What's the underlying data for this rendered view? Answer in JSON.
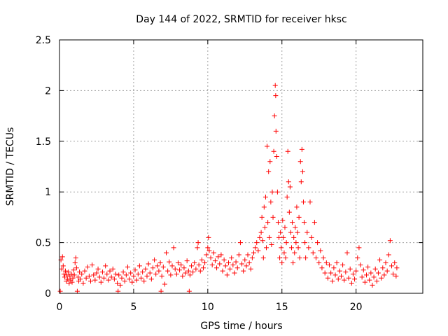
{
  "chart_data": {
    "type": "scatter",
    "title": "Day 144 of 2022, SRMTID for receiver hksc",
    "xlabel": "GPS time / hours",
    "ylabel": "SRMTID / TECUs",
    "xlim": [
      0,
      24.5
    ],
    "ylim": [
      0,
      2.5
    ],
    "x_ticks": [
      0,
      5,
      10,
      15,
      20
    ],
    "x_tick_labels": [
      "0",
      "5",
      "10",
      "15",
      "20"
    ],
    "y_ticks": [
      0,
      0.5,
      1,
      1.5,
      2,
      2.5
    ],
    "y_tick_labels": [
      "0",
      "0.5",
      "1",
      "1.5",
      "2",
      "2.5"
    ],
    "grid": true,
    "marker": "+",
    "color": "#ff0000",
    "series": [
      {
        "name": "SRMTID",
        "points": [
          [
            0.05,
            0.02
          ],
          [
            0.1,
            0.33
          ],
          [
            0.15,
            0.24
          ],
          [
            0.2,
            0.36
          ],
          [
            0.25,
            0.27
          ],
          [
            0.3,
            0.19
          ],
          [
            0.35,
            0.16
          ],
          [
            0.4,
            0.22
          ],
          [
            0.45,
            0.12
          ],
          [
            0.5,
            0.18
          ],
          [
            0.55,
            0.14
          ],
          [
            0.6,
            0.21
          ],
          [
            0.65,
            0.1
          ],
          [
            0.7,
            0.17
          ],
          [
            0.75,
            0.13
          ],
          [
            0.8,
            0.19
          ],
          [
            0.85,
            0.11
          ],
          [
            0.9,
            0.15
          ],
          [
            0.95,
            0.23
          ],
          [
            1.0,
            0.18
          ],
          [
            1.05,
            0.3
          ],
          [
            1.1,
            0.35
          ],
          [
            1.15,
            0.25
          ],
          [
            1.2,
            0.02
          ],
          [
            1.25,
            0.16
          ],
          [
            1.3,
            0.12
          ],
          [
            1.35,
            0.21
          ],
          [
            1.4,
            0.14
          ],
          [
            1.5,
            0.19
          ],
          [
            1.6,
            0.1
          ],
          [
            1.7,
            0.22
          ],
          [
            1.8,
            0.15
          ],
          [
            1.9,
            0.26
          ],
          [
            2.0,
            0.17
          ],
          [
            2.1,
            0.12
          ],
          [
            2.2,
            0.28
          ],
          [
            2.3,
            0.18
          ],
          [
            2.4,
            0.13
          ],
          [
            2.5,
            0.2
          ],
          [
            2.6,
            0.24
          ],
          [
            2.7,
            0.16
          ],
          [
            2.8,
            0.11
          ],
          [
            2.9,
            0.21
          ],
          [
            3.0,
            0.15
          ],
          [
            3.1,
            0.27
          ],
          [
            3.2,
            0.19
          ],
          [
            3.3,
            0.13
          ],
          [
            3.4,
            0.22
          ],
          [
            3.5,
            0.16
          ],
          [
            3.6,
            0.24
          ],
          [
            3.7,
            0.14
          ],
          [
            3.8,
            0.19
          ],
          [
            3.9,
            0.1
          ],
          [
            3.95,
            0.02
          ],
          [
            4.0,
            0.18
          ],
          [
            4.1,
            0.08
          ],
          [
            4.2,
            0.15
          ],
          [
            4.3,
            0.21
          ],
          [
            4.4,
            0.12
          ],
          [
            4.5,
            0.18
          ],
          [
            4.6,
            0.26
          ],
          [
            4.7,
            0.14
          ],
          [
            4.8,
            0.2
          ],
          [
            4.9,
            0.11
          ],
          [
            5.0,
            0.17
          ],
          [
            5.1,
            0.23
          ],
          [
            5.2,
            0.13
          ],
          [
            5.3,
            0.19
          ],
          [
            5.4,
            0.27
          ],
          [
            5.5,
            0.15
          ],
          [
            5.6,
            0.21
          ],
          [
            5.7,
            0.12
          ],
          [
            5.8,
            0.24
          ],
          [
            5.9,
            0.17
          ],
          [
            6.0,
            0.29
          ],
          [
            6.1,
            0.2
          ],
          [
            6.2,
            0.14
          ],
          [
            6.3,
            0.25
          ],
          [
            6.4,
            0.33
          ],
          [
            6.5,
            0.19
          ],
          [
            6.6,
            0.27
          ],
          [
            6.7,
            0.22
          ],
          [
            6.8,
            0.3
          ],
          [
            6.85,
            0.02
          ],
          [
            6.9,
            0.17
          ],
          [
            7.0,
            0.26
          ],
          [
            7.1,
            0.09
          ],
          [
            7.2,
            0.4
          ],
          [
            7.3,
            0.22
          ],
          [
            7.4,
            0.31
          ],
          [
            7.5,
            0.18
          ],
          [
            7.6,
            0.27
          ],
          [
            7.7,
            0.45
          ],
          [
            7.8,
            0.24
          ],
          [
            7.9,
            0.19
          ],
          [
            8.0,
            0.3
          ],
          [
            8.1,
            0.23
          ],
          [
            8.2,
            0.28
          ],
          [
            8.3,
            0.17
          ],
          [
            8.4,
            0.25
          ],
          [
            8.5,
            0.2
          ],
          [
            8.6,
            0.32
          ],
          [
            8.7,
            0.22
          ],
          [
            8.75,
            0.02
          ],
          [
            8.8,
            0.18
          ],
          [
            8.9,
            0.27
          ],
          [
            9.0,
            0.21
          ],
          [
            9.1,
            0.3
          ],
          [
            9.2,
            0.24
          ],
          [
            9.3,
            0.45
          ],
          [
            9.35,
            0.5
          ],
          [
            9.4,
            0.28
          ],
          [
            9.5,
            0.22
          ],
          [
            9.6,
            0.33
          ],
          [
            9.7,
            0.25
          ],
          [
            9.8,
            0.3
          ],
          [
            9.9,
            0.38
          ],
          [
            10.0,
            0.45
          ],
          [
            10.05,
            0.55
          ],
          [
            10.1,
            0.42
          ],
          [
            10.2,
            0.35
          ],
          [
            10.3,
            0.28
          ],
          [
            10.4,
            0.4
          ],
          [
            10.5,
            0.32
          ],
          [
            10.6,
            0.25
          ],
          [
            10.7,
            0.36
          ],
          [
            10.8,
            0.29
          ],
          [
            10.9,
            0.38
          ],
          [
            11.0,
            0.22
          ],
          [
            11.1,
            0.33
          ],
          [
            11.2,
            0.27
          ],
          [
            11.3,
            0.18
          ],
          [
            11.4,
            0.3
          ],
          [
            11.5,
            0.24
          ],
          [
            11.6,
            0.35
          ],
          [
            11.7,
            0.28
          ],
          [
            11.8,
            0.2
          ],
          [
            11.9,
            0.31
          ],
          [
            12.0,
            0.25
          ],
          [
            12.1,
            0.38
          ],
          [
            12.2,
            0.5
          ],
          [
            12.3,
            0.29
          ],
          [
            12.4,
            0.22
          ],
          [
            12.5,
            0.33
          ],
          [
            12.6,
            0.27
          ],
          [
            12.7,
            0.38
          ],
          [
            12.8,
            0.3
          ],
          [
            12.9,
            0.24
          ],
          [
            13.0,
            0.35
          ],
          [
            13.1,
            0.4
          ],
          [
            13.2,
            0.45
          ],
          [
            13.3,
            0.5
          ],
          [
            13.4,
            0.42
          ],
          [
            13.5,
            0.55
          ],
          [
            13.6,
            0.6
          ],
          [
            13.65,
            0.75
          ],
          [
            13.7,
            0.52
          ],
          [
            13.75,
            0.35
          ],
          [
            13.8,
            0.85
          ],
          [
            13.85,
            0.65
          ],
          [
            13.9,
            0.95
          ],
          [
            13.95,
            0.45
          ],
          [
            14.0,
            1.45
          ],
          [
            14.05,
            0.7
          ],
          [
            14.1,
            1.2
          ],
          [
            14.15,
            0.55
          ],
          [
            14.2,
            1.3
          ],
          [
            14.25,
            0.9
          ],
          [
            14.3,
            0.48
          ],
          [
            14.35,
            1.0
          ],
          [
            14.4,
            0.75
          ],
          [
            14.45,
            1.4
          ],
          [
            14.5,
            1.75
          ],
          [
            14.55,
            2.05
          ],
          [
            14.58,
            1.95
          ],
          [
            14.6,
            1.6
          ],
          [
            14.65,
            1.35
          ],
          [
            14.7,
            1.0
          ],
          [
            14.75,
            0.7
          ],
          [
            14.8,
            0.55
          ],
          [
            14.85,
            0.35
          ],
          [
            14.9,
            0.6
          ],
          [
            14.95,
            0.45
          ],
          [
            15.0,
            0.3
          ],
          [
            15.05,
            0.72
          ],
          [
            15.1,
            0.55
          ],
          [
            15.15,
            0.4
          ],
          [
            15.2,
            0.65
          ],
          [
            15.25,
            0.35
          ],
          [
            15.3,
            0.5
          ],
          [
            15.35,
            0.95
          ],
          [
            15.4,
            1.4
          ],
          [
            15.45,
            1.1
          ],
          [
            15.5,
            0.8
          ],
          [
            15.55,
            1.05
          ],
          [
            15.6,
            0.6
          ],
          [
            15.65,
            0.45
          ],
          [
            15.7,
            0.7
          ],
          [
            15.75,
            0.3
          ],
          [
            15.8,
            0.55
          ],
          [
            15.85,
            0.4
          ],
          [
            15.9,
            0.65
          ],
          [
            15.95,
            0.5
          ],
          [
            16.0,
            0.85
          ],
          [
            16.05,
            0.6
          ],
          [
            16.1,
            0.45
          ],
          [
            16.15,
            0.75
          ],
          [
            16.2,
            0.35
          ],
          [
            16.25,
            1.3
          ],
          [
            16.3,
            1.1
          ],
          [
            16.35,
            1.42
          ],
          [
            16.4,
            1.2
          ],
          [
            16.45,
            0.9
          ],
          [
            16.5,
            0.7
          ],
          [
            16.55,
            0.5
          ],
          [
            16.6,
            0.35
          ],
          [
            16.7,
            0.6
          ],
          [
            16.8,
            0.45
          ],
          [
            16.9,
            0.9
          ],
          [
            17.0,
            0.55
          ],
          [
            17.1,
            0.4
          ],
          [
            17.2,
            0.7
          ],
          [
            17.3,
            0.35
          ],
          [
            17.4,
            0.5
          ],
          [
            17.5,
            0.3
          ],
          [
            17.6,
            0.42
          ],
          [
            17.7,
            0.25
          ],
          [
            17.8,
            0.35
          ],
          [
            17.9,
            0.2
          ],
          [
            18.0,
            0.3
          ],
          [
            18.1,
            0.15
          ],
          [
            18.2,
            0.28
          ],
          [
            18.3,
            0.2
          ],
          [
            18.4,
            0.12
          ],
          [
            18.5,
            0.25
          ],
          [
            18.6,
            0.18
          ],
          [
            18.7,
            0.3
          ],
          [
            18.8,
            0.14
          ],
          [
            18.9,
            0.22
          ],
          [
            19.0,
            0.17
          ],
          [
            19.1,
            0.28
          ],
          [
            19.2,
            0.13
          ],
          [
            19.3,
            0.21
          ],
          [
            19.4,
            0.4
          ],
          [
            19.5,
            0.15
          ],
          [
            19.6,
            0.24
          ],
          [
            19.7,
            0.1
          ],
          [
            19.8,
            0.19
          ],
          [
            19.9,
            0.14
          ],
          [
            20.0,
            0.22
          ],
          [
            20.1,
            0.35
          ],
          [
            20.2,
            0.45
          ],
          [
            20.3,
            0.28
          ],
          [
            20.4,
            0.16
          ],
          [
            20.5,
            0.23
          ],
          [
            20.6,
            0.11
          ],
          [
            20.7,
            0.18
          ],
          [
            20.8,
            0.26
          ],
          [
            20.9,
            0.13
          ],
          [
            21.0,
            0.2
          ],
          [
            21.1,
            0.08
          ],
          [
            21.2,
            0.16
          ],
          [
            21.3,
            0.24
          ],
          [
            21.4,
            0.12
          ],
          [
            21.5,
            0.2
          ],
          [
            21.6,
            0.33
          ],
          [
            21.7,
            0.15
          ],
          [
            21.8,
            0.25
          ],
          [
            21.9,
            0.18
          ],
          [
            22.0,
            0.3
          ],
          [
            22.1,
            0.22
          ],
          [
            22.2,
            0.38
          ],
          [
            22.3,
            0.52
          ],
          [
            22.4,
            0.27
          ],
          [
            22.5,
            0.19
          ],
          [
            22.6,
            0.3
          ],
          [
            22.7,
            0.17
          ],
          [
            22.75,
            0.25
          ]
        ]
      }
    ]
  }
}
